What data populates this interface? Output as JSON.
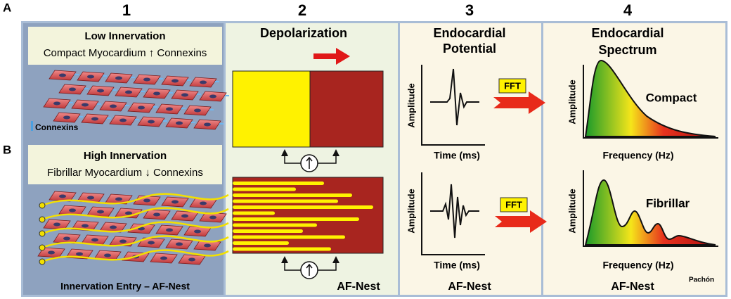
{
  "row_labels": [
    "A",
    "B"
  ],
  "column_numbers": [
    "1",
    "2",
    "3",
    "4"
  ],
  "panel1": {
    "top": {
      "title": "Low Innervation",
      "subtitle": "Compact Myocardium ↑ Connexins",
      "legend": "Connexins"
    },
    "bottom": {
      "title": "High Innervation",
      "subtitle": "Fibrillar Myocardium ↓ Connexins"
    },
    "caption": "Innervation Entry – AF-Nest"
  },
  "panel2": {
    "title": "Depolarization",
    "caption": "AF-Nest"
  },
  "panel3": {
    "title": [
      "Endocardial",
      "Potential"
    ],
    "plots": [
      {
        "y_axis": "Amplitude",
        "x_axis": "Time (ms)"
      },
      {
        "y_axis": "Amplitude",
        "x_axis": "Time (ms)"
      }
    ],
    "caption": "AF-Nest"
  },
  "fft": [
    "FFT",
    "FFT"
  ],
  "panel4": {
    "title": [
      "Endocardial",
      "Spectrum"
    ],
    "plots": [
      {
        "y_axis": "Amplitude",
        "x_axis": "Frequency (Hz)",
        "label": "Compact"
      },
      {
        "y_axis": "Amplitude",
        "x_axis": "Frequency (Hz)",
        "label": "Fibrillar"
      }
    ],
    "caption": "AF-Nest"
  },
  "credit": "Pachón"
}
